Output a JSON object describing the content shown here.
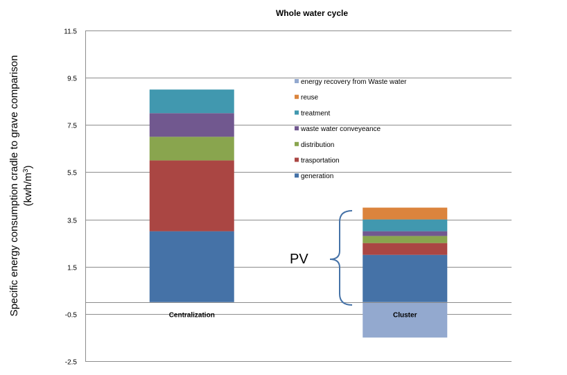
{
  "chart_data": {
    "type": "bar",
    "stacked": true,
    "title": "Whole water cycle",
    "ylabel_line1": "Specific energy consumption cradle to grave comparison",
    "ylabel_line2_prefix": "(kwh/m",
    "ylabel_line2_sup": "3",
    "ylabel_line2_suffix": ")",
    "ylim": [
      -2.5,
      11.5
    ],
    "yticks": [
      11.5,
      9.5,
      7.5,
      5.5,
      3.5,
      1.5,
      -0.5,
      -2.5
    ],
    "grid": true,
    "legend_position": "right-center",
    "categories": [
      "Centralization",
      "Cluster"
    ],
    "series": [
      {
        "name": "generation",
        "color": "#4572A7",
        "values": [
          3.0,
          2.0
        ]
      },
      {
        "name": "trasportation",
        "color": "#AA4643",
        "values": [
          3.0,
          0.5
        ]
      },
      {
        "name": "distribution",
        "color": "#89A54E",
        "values": [
          1.0,
          0.3
        ]
      },
      {
        "name": "waste water conveyeance",
        "color": "#71588F",
        "values": [
          1.0,
          0.2
        ]
      },
      {
        "name": "treatment",
        "color": "#4198AF",
        "values": [
          1.0,
          0.5
        ]
      },
      {
        "name": "reuse",
        "color": "#DB843D",
        "values": [
          0.0,
          0.5
        ]
      },
      {
        "name": "energy recovery from Waste water",
        "color": "#93A9CF",
        "values": [
          0.0,
          -1.5
        ]
      }
    ],
    "annotation": "PV"
  }
}
